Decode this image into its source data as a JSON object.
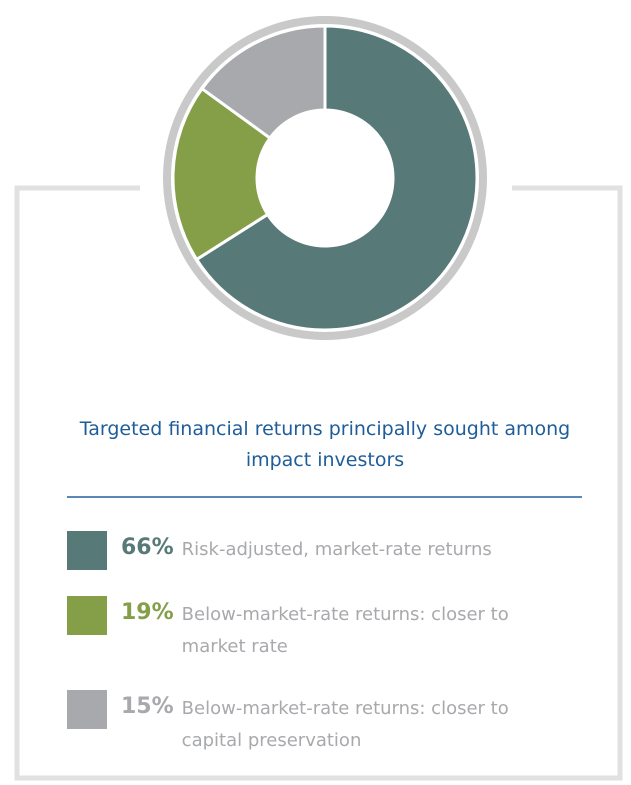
{
  "chart_data": {
    "type": "pie",
    "donut": true,
    "title": "Targeted financial returns principally sought among impact investors",
    "categories": [
      "Risk-adjusted, market-rate returns",
      "Below-market-rate returns: closer to market rate",
      "Below-market-rate returns: closer to capital preservation"
    ],
    "values": [
      66,
      19,
      15
    ],
    "value_labels": [
      "66%",
      "19%",
      "15%"
    ],
    "colors": [
      "#577a78",
      "#849f48",
      "#a7a9ac"
    ]
  }
}
